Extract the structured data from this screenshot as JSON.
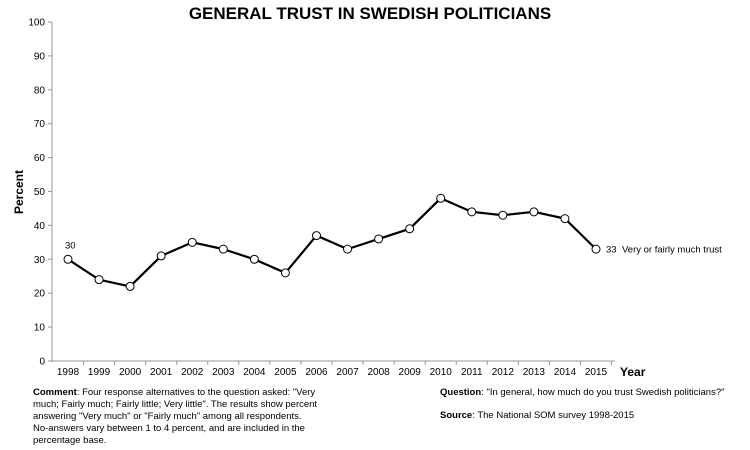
{
  "chart_data": {
    "type": "line",
    "title": "GENERAL TRUST IN SWEDISH POLITICIANS",
    "xlabel": "Year",
    "ylabel": "Percent",
    "ylim": [
      0,
      100
    ],
    "yticks": [
      0,
      10,
      20,
      30,
      40,
      50,
      60,
      70,
      80,
      90,
      100
    ],
    "categories": [
      "1998",
      "1999",
      "2000",
      "2001",
      "2002",
      "2003",
      "2004",
      "2005",
      "2006",
      "2007",
      "2008",
      "2009",
      "2010",
      "2011",
      "2012",
      "2013",
      "2014",
      "2015"
    ],
    "series": [
      {
        "name": "Very or fairly much trust",
        "values": [
          30,
          24,
          22,
          31,
          35,
          33,
          30,
          26,
          37,
          33,
          36,
          39,
          48,
          44,
          43,
          44,
          42,
          33
        ],
        "color": "#000000"
      }
    ],
    "data_labels": {
      "first": "30",
      "last": "33"
    },
    "grid": false,
    "legend": "inline-right"
  },
  "notes": {
    "comment_label": "Comment",
    "comment_text": ": Four response alternatives to the question asked: \"Very much; Fairly much; Fairly little; Very little\". The results show percent answering \"Very much\" or \"Fairly much\" among all respondents. No-answers vary between 1 to 4 percent, and are included in the percentage base.",
    "question_label": "Question",
    "question_text": ": \"In general, how much do you trust Swedish politicians?\"",
    "source_label": "Source",
    "source_text": ": The National SOM survey 1998-2015"
  }
}
